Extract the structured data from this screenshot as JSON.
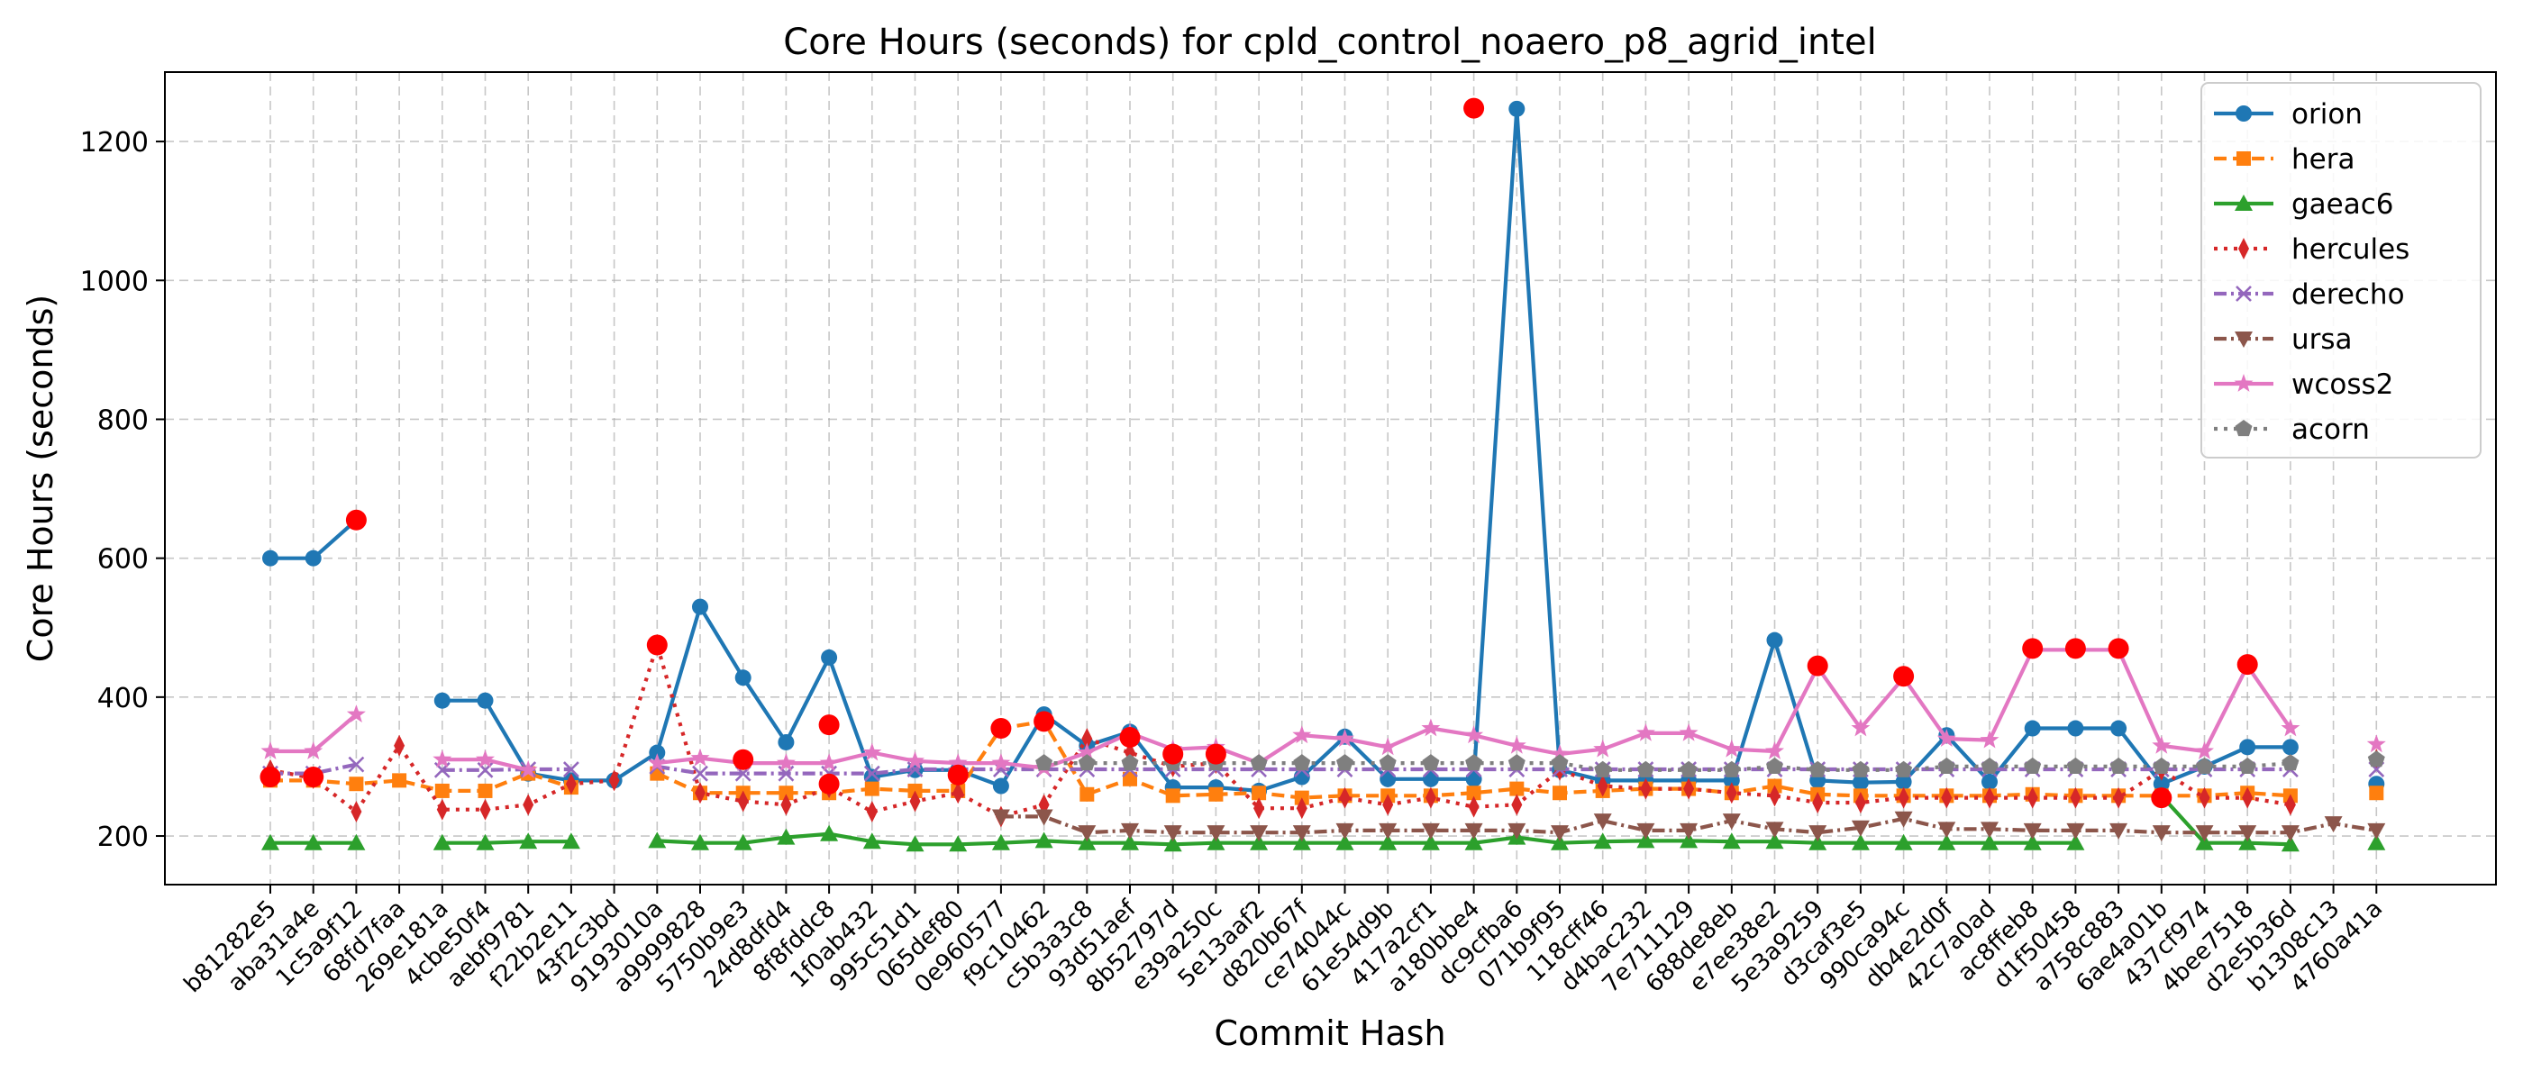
{
  "chart_data": {
    "type": "line",
    "title": "Core Hours (seconds) for cpld_control_noaero_p8_agrid_intel",
    "xlabel": "Commit Hash",
    "ylabel": "Core Hours (seconds)",
    "ylim": [
      130,
      1300
    ],
    "yticks": [
      200,
      400,
      600,
      800,
      1000,
      1200
    ],
    "grid": true,
    "legend_position": "top-right",
    "categories": [
      "b81282e5",
      "aba31a4e",
      "1c5a9f12",
      "68fd7faa",
      "269e181a",
      "4cbe50f4",
      "aebf9781",
      "f22b2e11",
      "43f2c3bd",
      "9193010a",
      "a9999828",
      "5750b9e3",
      "24d8dfd4",
      "8f8fddc8",
      "1f0ab432",
      "995c51d1",
      "065def80",
      "0e960577",
      "f9c10462",
      "c5b3a3c8",
      "93d51aef",
      "8b52797d",
      "e39a250c",
      "5e13aaf2",
      "d820b67f",
      "ce74044c",
      "61e54d9b",
      "417a2cf1",
      "a180bbe4",
      "dc9cfba6",
      "071b9f95",
      "118cff46",
      "d4bac232",
      "7e711129",
      "688de8eb",
      "e7ee38e2",
      "5e3a9259",
      "d3caf3e5",
      "990ca94c",
      "db4e2d0f",
      "42c7a0ad",
      "ac8ffeb8",
      "d1f50458",
      "a758c883",
      "6ae4a01b",
      "437cf974",
      "4bee7518",
      "d2e5b36d",
      "b1308c13",
      "4760a41a"
    ],
    "series": [
      {
        "name": "orion",
        "color": "#1f77b4",
        "marker": "circle",
        "dash": "",
        "values": [
          600,
          600,
          655,
          null,
          395,
          395,
          290,
          280,
          280,
          320,
          530,
          428,
          335,
          457,
          285,
          295,
          295,
          272,
          375,
          330,
          350,
          270,
          270,
          265,
          285,
          343,
          282,
          282,
          282,
          1247,
          295,
          280,
          280,
          280,
          280,
          482,
          280,
          277,
          278,
          345,
          278,
          355,
          355,
          355,
          275,
          300,
          328,
          328,
          null,
          275
        ]
      },
      {
        "name": "hera",
        "color": "#ff7f0e",
        "marker": "square",
        "dash": "14 7",
        "values": [
          280,
          280,
          275,
          280,
          265,
          265,
          290,
          270,
          null,
          290,
          262,
          262,
          262,
          262,
          268,
          265,
          265,
          355,
          365,
          260,
          282,
          258,
          260,
          262,
          255,
          258,
          258,
          258,
          262,
          268,
          262,
          265,
          268,
          268,
          262,
          272,
          260,
          258,
          258,
          258,
          258,
          260,
          258,
          258,
          258,
          258,
          262,
          258,
          null,
          262
        ]
      },
      {
        "name": "gaeac6",
        "color": "#2ca02c",
        "marker": "triangle-up",
        "dash": "",
        "values": [
          190,
          190,
          190,
          null,
          190,
          190,
          192,
          192,
          null,
          193,
          190,
          190,
          198,
          203,
          192,
          188,
          188,
          190,
          193,
          190,
          190,
          188,
          190,
          190,
          190,
          190,
          190,
          190,
          190,
          198,
          190,
          192,
          193,
          193,
          192,
          192,
          190,
          190,
          190,
          190,
          190,
          190,
          190,
          null,
          258,
          190,
          190,
          188,
          null,
          190
        ]
      },
      {
        "name": "hercules",
        "color": "#d62728",
        "marker": "diamond",
        "dash": "4 7",
        "values": [
          295,
          283,
          235,
          330,
          238,
          238,
          245,
          275,
          280,
          475,
          262,
          250,
          245,
          270,
          235,
          250,
          262,
          228,
          245,
          340,
          320,
          300,
          305,
          240,
          240,
          255,
          245,
          255,
          242,
          245,
          295,
          272,
          268,
          268,
          262,
          258,
          248,
          248,
          255,
          255,
          255,
          255,
          255,
          255,
          295,
          255,
          255,
          245,
          null,
          310
        ]
      },
      {
        "name": "derecho",
        "color": "#9467bd",
        "marker": "x",
        "dash": "14 5 3 5",
        "values": [
          290,
          290,
          303,
          null,
          295,
          295,
          296,
          296,
          null,
          300,
          290,
          290,
          290,
          290,
          290,
          296,
          296,
          296,
          296,
          296,
          296,
          296,
          296,
          296,
          296,
          296,
          296,
          296,
          296,
          296,
          296,
          296,
          296,
          296,
          296,
          296,
          296,
          296,
          296,
          296,
          296,
          296,
          296,
          296,
          296,
          296,
          296,
          296,
          null,
          296
        ]
      },
      {
        "name": "ursa",
        "color": "#8c564b",
        "marker": "triangle-down",
        "dash": "14 5 3 5",
        "values": [
          null,
          null,
          null,
          null,
          null,
          null,
          null,
          null,
          null,
          null,
          null,
          null,
          null,
          null,
          null,
          null,
          null,
          228,
          228,
          205,
          208,
          205,
          205,
          205,
          205,
          208,
          208,
          208,
          208,
          208,
          205,
          222,
          208,
          208,
          222,
          210,
          205,
          212,
          225,
          210,
          210,
          208,
          208,
          208,
          205,
          205,
          205,
          205,
          218,
          208
        ]
      },
      {
        "name": "wcoss2",
        "color": "#e377c2",
        "marker": "star",
        "dash": "",
        "values": [
          322,
          322,
          375,
          null,
          310,
          310,
          295,
          null,
          null,
          305,
          312,
          305,
          305,
          305,
          320,
          308,
          305,
          305,
          298,
          320,
          348,
          325,
          328,
          305,
          345,
          340,
          328,
          355,
          345,
          330,
          318,
          325,
          348,
          348,
          325,
          322,
          443,
          355,
          428,
          340,
          338,
          468,
          468,
          468,
          330,
          322,
          445,
          355,
          null,
          332
        ]
      },
      {
        "name": "acorn",
        "color": "#7f7f7f",
        "marker": "pentagon",
        "dash": "4 7",
        "values": [
          null,
          null,
          null,
          null,
          null,
          null,
          null,
          null,
          null,
          null,
          null,
          null,
          null,
          null,
          null,
          null,
          null,
          null,
          305,
          305,
          305,
          305,
          305,
          305,
          305,
          305,
          305,
          305,
          305,
          305,
          305,
          295,
          295,
          295,
          295,
          300,
          295,
          295,
          295,
          300,
          300,
          300,
          300,
          300,
          300,
          300,
          300,
          305,
          null,
          310
        ]
      }
    ],
    "highlights": {
      "color": "#ff0000",
      "points": [
        {
          "x": "b81282e5",
          "y": 285
        },
        {
          "x": "aba31a4e",
          "y": 285
        },
        {
          "x": "1c5a9f12",
          "y": 655
        },
        {
          "x": "9193010a",
          "y": 475
        },
        {
          "x": "5750b9e3",
          "y": 310
        },
        {
          "x": "8f8fddc8",
          "y": 360
        },
        {
          "x": "8f8fddc8",
          "y": 275
        },
        {
          "x": "065def80",
          "y": 288
        },
        {
          "x": "0e960577",
          "y": 355
        },
        {
          "x": "f9c10462",
          "y": 365
        },
        {
          "x": "93d51aef",
          "y": 342
        },
        {
          "x": "8b52797d",
          "y": 318
        },
        {
          "x": "e39a250c",
          "y": 318
        },
        {
          "x": "a180bbe4",
          "y": 1248
        },
        {
          "x": "5e3a9259",
          "y": 445
        },
        {
          "x": "990ca94c",
          "y": 430
        },
        {
          "x": "ac8ffeb8",
          "y": 470
        },
        {
          "x": "d1f50458",
          "y": 470
        },
        {
          "x": "a758c883",
          "y": 470
        },
        {
          "x": "6ae4a01b",
          "y": 255
        },
        {
          "x": "4bee7518",
          "y": 447
        }
      ]
    }
  }
}
